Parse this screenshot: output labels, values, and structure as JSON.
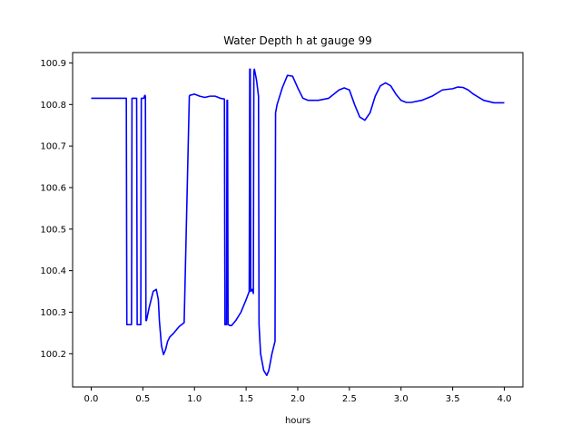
{
  "chart_data": {
    "type": "line",
    "title": "Water Depth h at gauge 99",
    "xlabel": "hours",
    "ylabel": "",
    "xlim": [
      -0.18,
      4.18
    ],
    "ylim": [
      100.12,
      100.925
    ],
    "xticks": [
      0.0,
      0.5,
      1.0,
      1.5,
      2.0,
      2.5,
      3.0,
      3.5,
      4.0
    ],
    "xtick_labels": [
      "0.0",
      "0.5",
      "1.0",
      "1.5",
      "2.0",
      "2.5",
      "3.0",
      "3.5",
      "4.0"
    ],
    "yticks": [
      100.2,
      100.3,
      100.4,
      100.5,
      100.6,
      100.7,
      100.8,
      100.9
    ],
    "ytick_labels": [
      "100.2",
      "100.3",
      "100.4",
      "100.5",
      "100.6",
      "100.7",
      "100.8",
      "100.9"
    ],
    "grid": false,
    "series": [
      {
        "color": "#0000ff",
        "x": [
          0.0,
          0.34,
          0.345,
          0.39,
          0.395,
          0.44,
          0.445,
          0.48,
          0.485,
          0.51,
          0.515,
          0.52,
          0.525,
          0.53,
          0.535,
          0.56,
          0.6,
          0.63,
          0.65,
          0.66,
          0.68,
          0.7,
          0.72,
          0.74,
          0.76,
          0.8,
          0.85,
          0.9,
          0.95,
          0.955,
          1.0,
          1.05,
          1.1,
          1.15,
          1.2,
          1.25,
          1.29,
          1.295,
          1.31,
          1.315,
          1.32,
          1.325,
          1.33,
          1.34,
          1.36,
          1.4,
          1.45,
          1.5,
          1.53,
          1.535,
          1.54,
          1.545,
          1.56,
          1.57,
          1.575,
          1.58,
          1.6,
          1.62,
          1.625,
          1.64,
          1.67,
          1.7,
          1.72,
          1.75,
          1.78,
          1.785,
          1.8,
          1.85,
          1.9,
          1.95,
          2.0,
          2.05,
          2.1,
          2.2,
          2.3,
          2.4,
          2.45,
          2.5,
          2.55,
          2.6,
          2.65,
          2.7,
          2.75,
          2.8,
          2.85,
          2.9,
          2.95,
          3.0,
          3.05,
          3.1,
          3.2,
          3.3,
          3.4,
          3.5,
          3.55,
          3.6,
          3.65,
          3.7,
          3.8,
          3.9,
          4.0
        ],
        "y": [
          100.815,
          100.815,
          100.27,
          100.27,
          100.815,
          100.815,
          100.27,
          100.27,
          100.815,
          100.815,
          100.82,
          100.822,
          100.82,
          100.28,
          100.28,
          100.31,
          100.35,
          100.355,
          100.33,
          100.28,
          100.22,
          100.198,
          100.21,
          100.23,
          100.24,
          100.25,
          100.265,
          100.275,
          100.82,
          100.822,
          100.825,
          100.82,
          100.817,
          100.82,
          100.82,
          100.815,
          100.813,
          100.27,
          100.27,
          100.81,
          100.81,
          100.27,
          100.27,
          100.268,
          100.268,
          100.28,
          100.3,
          100.33,
          100.35,
          100.885,
          100.885,
          100.35,
          100.355,
          100.345,
          100.88,
          100.885,
          100.86,
          100.82,
          100.27,
          100.2,
          100.16,
          100.148,
          100.16,
          100.2,
          100.23,
          100.78,
          100.8,
          100.84,
          100.87,
          100.868,
          100.84,
          100.815,
          100.81,
          100.81,
          100.815,
          100.835,
          100.84,
          100.835,
          100.8,
          100.77,
          100.762,
          100.78,
          100.82,
          100.845,
          100.852,
          100.845,
          100.825,
          100.81,
          100.805,
          100.805,
          100.81,
          100.82,
          100.835,
          100.838,
          100.842,
          100.841,
          100.835,
          100.825,
          100.81,
          100.804,
          100.804
        ]
      }
    ]
  }
}
